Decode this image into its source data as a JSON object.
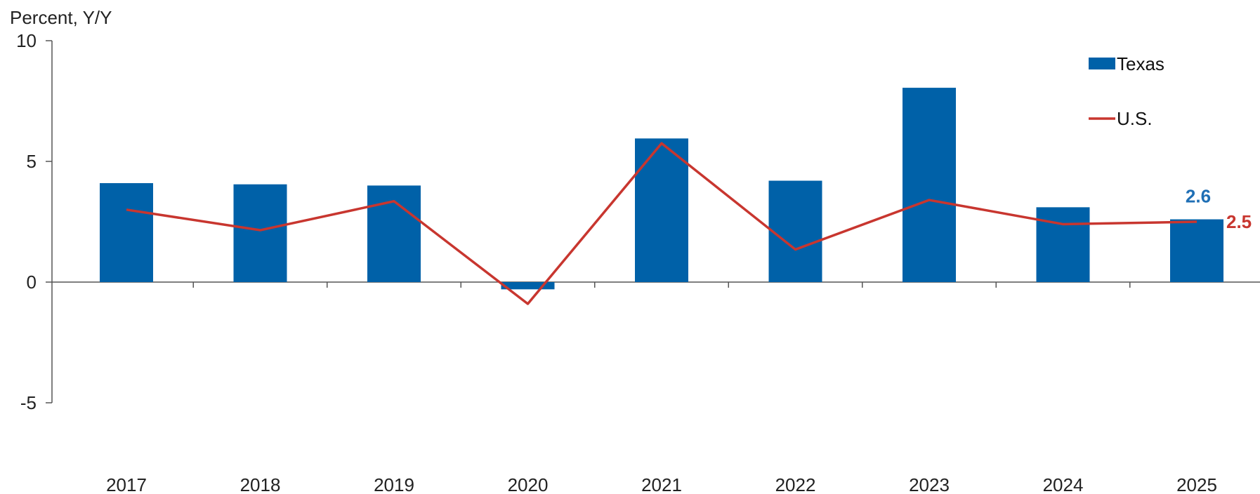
{
  "chart_data": {
    "type": "bar",
    "ylabel": "Percent, Y/Y",
    "ylim": [
      -5,
      10
    ],
    "yticks": [
      -5,
      0,
      5,
      10
    ],
    "categories": [
      "2017",
      "2018",
      "2019",
      "2020",
      "2021",
      "2022",
      "2023",
      "2024",
      "2025"
    ],
    "series": [
      {
        "name": "Texas",
        "kind": "bar",
        "color": "#0061a8",
        "values": [
          4.1,
          4.05,
          4.0,
          -0.3,
          5.95,
          4.2,
          8.05,
          3.1,
          2.6
        ]
      },
      {
        "name": "U.S.",
        "kind": "line",
        "color": "#c8362f",
        "values": [
          3.0,
          2.15,
          3.35,
          -0.9,
          5.75,
          1.35,
          3.4,
          2.4,
          2.5
        ]
      }
    ],
    "data_labels": [
      {
        "series": "Texas",
        "category": "2025",
        "text": "2.6",
        "color": "#1f6fb5"
      },
      {
        "series": "U.S.",
        "category": "2025",
        "text": "2.5",
        "color": "#c8362f"
      }
    ],
    "legend": {
      "position": "top-right",
      "entries": [
        {
          "label": "Texas",
          "symbol": "bar",
          "color": "#0061a8"
        },
        {
          "label": "U.S.",
          "symbol": "line",
          "color": "#c8362f"
        }
      ]
    },
    "grid": false
  }
}
